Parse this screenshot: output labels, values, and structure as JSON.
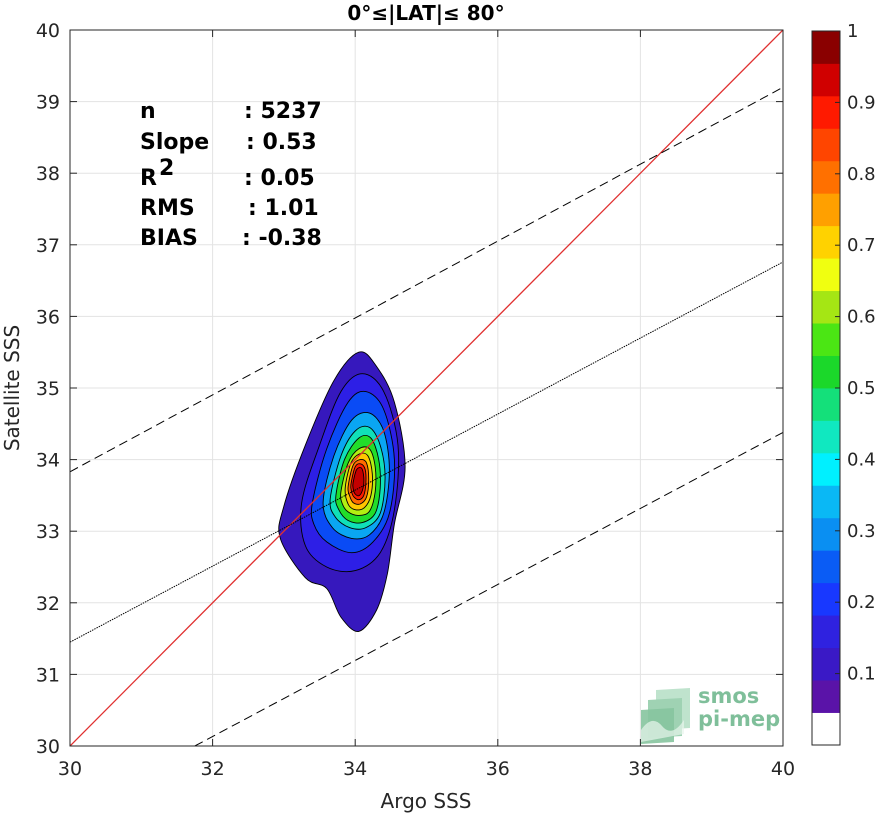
{
  "chart_data": {
    "type": "contour",
    "title": "0°≤|LAT|≤ 80°",
    "xlabel": "Argo SSS",
    "ylabel": "Satellite SSS",
    "xlim": [
      30,
      40
    ],
    "ylim": [
      30,
      40
    ],
    "xticks": [
      "30",
      "32",
      "34",
      "36",
      "38",
      "40"
    ],
    "yticks": [
      "30",
      "31",
      "32",
      "33",
      "34",
      "35",
      "36",
      "37",
      "38",
      "39",
      "40"
    ],
    "grid": true,
    "stats": [
      {
        "name": "n",
        "value": ": 5237"
      },
      {
        "name": "Slope",
        "value": ": 0.53"
      },
      {
        "name": "R",
        "sup": "2",
        "value": ": 0.05"
      },
      {
        "name": "RMS",
        "value": ": 1.01"
      },
      {
        "name": "BIAS",
        "value": ": -0.38"
      }
    ],
    "lines": [
      {
        "kind": "one-to-one",
        "color": "#e03030",
        "style": "solid",
        "x": [
          30,
          40
        ],
        "y": [
          30,
          40
        ]
      },
      {
        "kind": "regression",
        "color": "#000000",
        "style": "dotted",
        "x": [
          30,
          40
        ],
        "y": [
          31.45,
          36.76
        ]
      },
      {
        "kind": "regression-plus-2rms",
        "color": "#000000",
        "style": "dashed",
        "x": [
          30,
          40
        ],
        "y": [
          33.83,
          39.2
        ]
      },
      {
        "kind": "regression-minus-2rms",
        "color": "#000000",
        "style": "dashed",
        "x": [
          31.75,
          40
        ],
        "y": [
          30,
          34.38
        ]
      }
    ],
    "density_contours": {
      "center": [
        34.05,
        33.72
      ],
      "levels": [
        {
          "level": 0.05,
          "color": "#3618bd",
          "points": [
            [
              33.0,
              33.35
            ],
            [
              33.3,
              34.2
            ],
            [
              33.7,
              35.1
            ],
            [
              34.05,
              35.5
            ],
            [
              34.3,
              35.3
            ],
            [
              34.55,
              34.8
            ],
            [
              34.7,
              33.9
            ],
            [
              34.55,
              33.1
            ],
            [
              34.45,
              32.4
            ],
            [
              34.3,
              31.9
            ],
            [
              34.05,
              31.6
            ],
            [
              33.8,
              31.8
            ],
            [
              33.6,
              32.2
            ],
            [
              33.3,
              32.35
            ],
            [
              32.95,
              32.9
            ]
          ]
        },
        {
          "level": 0.1,
          "color": "#2d1fe6",
          "points": [
            [
              33.25,
              33.4
            ],
            [
              33.5,
              34.2
            ],
            [
              33.8,
              34.95
            ],
            [
              34.1,
              35.2
            ],
            [
              34.4,
              34.95
            ],
            [
              34.6,
              34.2
            ],
            [
              34.55,
              33.3
            ],
            [
              34.35,
              32.7
            ],
            [
              34.0,
              32.45
            ],
            [
              33.6,
              32.5
            ],
            [
              33.3,
              32.8
            ]
          ]
        },
        {
          "level": 0.2,
          "color": "#0a4bf5",
          "points": [
            [
              33.4,
              33.4
            ],
            [
              33.6,
              34.15
            ],
            [
              33.9,
              34.8
            ],
            [
              34.15,
              34.95
            ],
            [
              34.4,
              34.7
            ],
            [
              34.55,
              34.0
            ],
            [
              34.48,
              33.25
            ],
            [
              34.25,
              32.85
            ],
            [
              33.95,
              32.7
            ],
            [
              33.6,
              32.85
            ],
            [
              33.42,
              33.1
            ]
          ]
        },
        {
          "level": 0.3,
          "color": "#0aa6f2",
          "points": [
            [
              33.55,
              33.4
            ],
            [
              33.7,
              34.05
            ],
            [
              33.95,
              34.55
            ],
            [
              34.2,
              34.65
            ],
            [
              34.4,
              34.4
            ],
            [
              34.48,
              33.85
            ],
            [
              34.4,
              33.25
            ],
            [
              34.2,
              32.95
            ],
            [
              33.95,
              32.9
            ],
            [
              33.68,
              33.05
            ]
          ]
        },
        {
          "level": 0.4,
          "color": "#10e0b8",
          "points": [
            [
              33.65,
              33.45
            ],
            [
              33.8,
              34.05
            ],
            [
              34.0,
              34.4
            ],
            [
              34.2,
              34.45
            ],
            [
              34.35,
              34.2
            ],
            [
              34.42,
              33.75
            ],
            [
              34.35,
              33.25
            ],
            [
              34.15,
              33.05
            ],
            [
              33.92,
              33.05
            ],
            [
              33.72,
              33.2
            ]
          ]
        },
        {
          "level": 0.5,
          "color": "#22dd2a",
          "points": [
            [
              33.73,
              33.5
            ],
            [
              33.85,
              34.0
            ],
            [
              34.05,
              34.3
            ],
            [
              34.22,
              34.3
            ],
            [
              34.33,
              34.0
            ],
            [
              34.35,
              33.6
            ],
            [
              34.28,
              33.25
            ],
            [
              34.1,
              33.12
            ],
            [
              33.9,
              33.15
            ],
            [
              33.77,
              33.3
            ]
          ]
        },
        {
          "level": 0.6,
          "color": "#b3ef12",
          "points": [
            [
              33.8,
              33.55
            ],
            [
              33.9,
              33.95
            ],
            [
              34.05,
              34.15
            ],
            [
              34.2,
              34.15
            ],
            [
              34.28,
              33.9
            ],
            [
              34.28,
              33.55
            ],
            [
              34.2,
              33.28
            ],
            [
              34.05,
              33.22
            ],
            [
              33.9,
              33.27
            ],
            [
              33.82,
              33.38
            ]
          ]
        },
        {
          "level": 0.7,
          "color": "#ffc600",
          "points": [
            [
              33.86,
              33.6
            ],
            [
              33.94,
              33.95
            ],
            [
              34.06,
              34.08
            ],
            [
              34.18,
              34.05
            ],
            [
              34.24,
              33.8
            ],
            [
              34.22,
              33.5
            ],
            [
              34.13,
              33.33
            ],
            [
              34.0,
              33.3
            ],
            [
              33.9,
              33.38
            ]
          ]
        },
        {
          "level": 0.8,
          "color": "#ff6a00",
          "points": [
            [
              33.9,
              33.62
            ],
            [
              33.97,
              33.92
            ],
            [
              34.07,
              34.0
            ],
            [
              34.16,
              33.95
            ],
            [
              34.19,
              33.72
            ],
            [
              34.16,
              33.48
            ],
            [
              34.07,
              33.38
            ],
            [
              33.97,
              33.4
            ],
            [
              33.92,
              33.5
            ]
          ]
        },
        {
          "level": 0.9,
          "color": "#ff1a00",
          "points": [
            [
              33.94,
              33.65
            ],
            [
              34.0,
              33.9
            ],
            [
              34.08,
              33.94
            ],
            [
              34.14,
              33.86
            ],
            [
              34.15,
              33.68
            ],
            [
              34.12,
              33.5
            ],
            [
              34.05,
              33.44
            ],
            [
              33.98,
              33.48
            ],
            [
              33.95,
              33.55
            ]
          ]
        },
        {
          "level": 1.0,
          "color": "#c40000",
          "points": [
            [
              33.97,
              33.68
            ],
            [
              34.02,
              33.86
            ],
            [
              34.09,
              33.88
            ],
            [
              34.12,
              33.75
            ],
            [
              34.11,
              33.6
            ],
            [
              34.06,
              33.5
            ],
            [
              34.0,
              33.52
            ],
            [
              33.97,
              33.6
            ]
          ]
        }
      ]
    },
    "colorbar": {
      "ticks": [
        "0.1",
        "0.2",
        "0.3",
        "0.4",
        "0.5",
        "0.6",
        "0.7",
        "0.8",
        "0.9",
        "1"
      ],
      "range": [
        0,
        1
      ],
      "colors": [
        "#ffffff",
        "#5a13a8",
        "#3a19c6",
        "#2f22e0",
        "#1838ff",
        "#0a5cf5",
        "#0a8ff2",
        "#0ab8f5",
        "#00f0ff",
        "#10e8c0",
        "#14e07a",
        "#1bd82a",
        "#4be614",
        "#a5e614",
        "#f0ff10",
        "#ffd200",
        "#ffa000",
        "#ff7000",
        "#ff4500",
        "#ff1a00",
        "#d00000",
        "#8a0000"
      ]
    },
    "logo": {
      "line1": "smos",
      "line2": "pi-mep"
    }
  }
}
